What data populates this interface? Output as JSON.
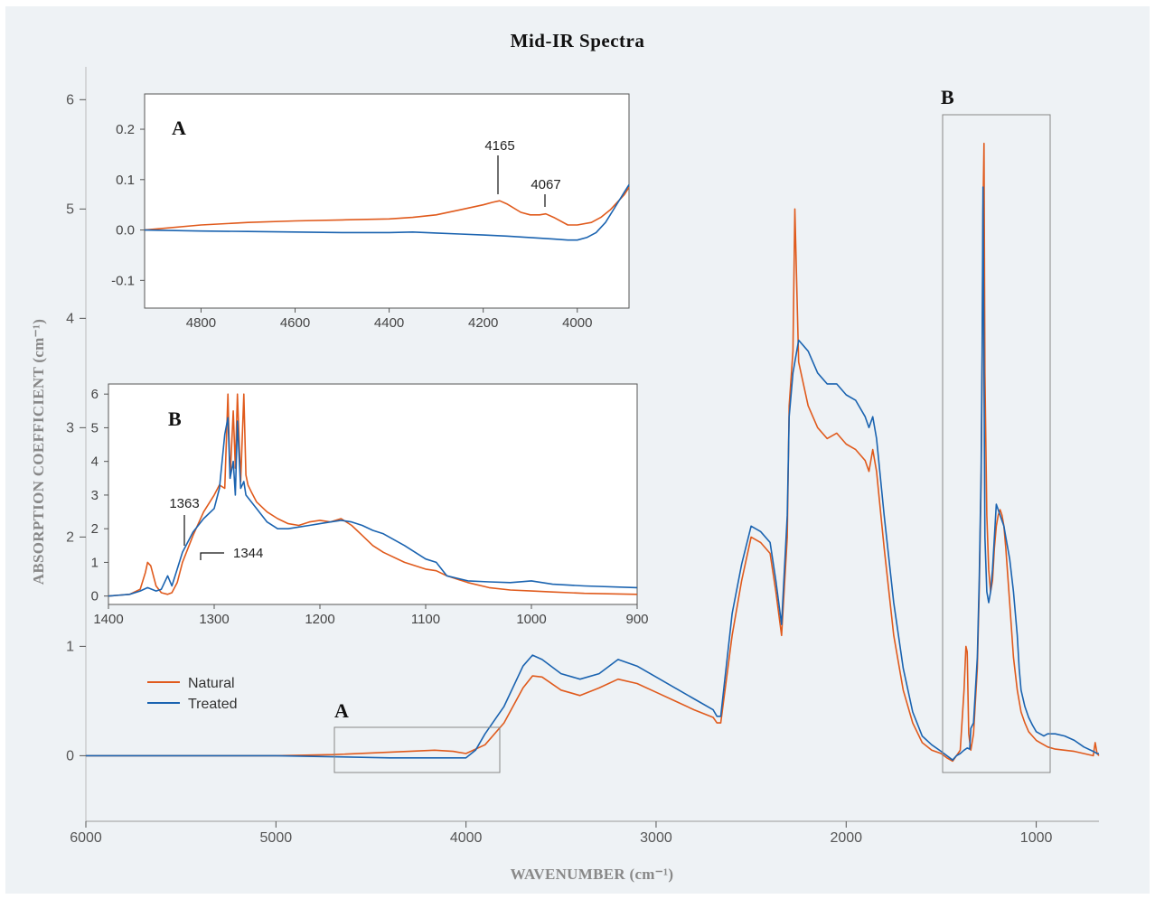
{
  "chart_data": [
    {
      "id": "main",
      "type": "line",
      "title": "Mid-IR Spectra",
      "xlabel": "WAVENUMBER (cm⁻¹)",
      "ylabel": "ABSORPTION COEFFICIENT (cm⁻¹)",
      "xlim": [
        6000,
        670
      ],
      "ylim": [
        -0.6,
        6.3
      ],
      "xticks": [
        "6000",
        "5000",
        "4000",
        "3000",
        "2000",
        "1000"
      ],
      "yticks": [
        "0",
        "1",
        "2",
        "3",
        "4",
        "5",
        "6"
      ],
      "region_labels": {
        "A": "A",
        "B": "B"
      },
      "series": [
        {
          "name": "Natural",
          "color": "#e05a1c",
          "x": [
            6000,
            5000,
            4700,
            4300,
            4165,
            4067,
            4000,
            3900,
            3800,
            3700,
            3650,
            3600,
            3500,
            3400,
            3300,
            3200,
            3100,
            3000,
            2900,
            2800,
            2700,
            2680,
            2660,
            2600,
            2550,
            2500,
            2450,
            2400,
            2370,
            2340,
            2310,
            2300,
            2280,
            2270,
            2250,
            2200,
            2150,
            2100,
            2050,
            2000,
            1950,
            1900,
            1880,
            1860,
            1840,
            1800,
            1750,
            1700,
            1650,
            1600,
            1550,
            1500,
            1470,
            1440,
            1420,
            1400,
            1380,
            1370,
            1363,
            1355,
            1344,
            1330,
            1310,
            1300,
            1290,
            1285,
            1280,
            1275,
            1270,
            1260,
            1250,
            1240,
            1230,
            1220,
            1210,
            1200,
            1190,
            1180,
            1170,
            1160,
            1140,
            1120,
            1100,
            1080,
            1060,
            1040,
            1020,
            1000,
            980,
            960,
            940,
            900,
            850,
            800,
            750,
            700,
            690,
            680,
            670
          ],
          "values": [
            0.0,
            0.0,
            0.01,
            0.04,
            0.05,
            0.04,
            0.02,
            0.1,
            0.3,
            0.62,
            0.73,
            0.72,
            0.6,
            0.55,
            0.62,
            0.7,
            0.66,
            0.58,
            0.5,
            0.42,
            0.35,
            0.3,
            0.3,
            1.1,
            1.6,
            2.0,
            1.95,
            1.85,
            1.5,
            1.1,
            2.0,
            3.2,
            3.7,
            5.0,
            3.6,
            3.2,
            3.0,
            2.9,
            2.95,
            2.85,
            2.8,
            2.7,
            2.6,
            2.8,
            2.6,
            1.9,
            1.1,
            0.6,
            0.3,
            0.12,
            0.05,
            0.02,
            -0.02,
            -0.05,
            0.0,
            0.05,
            0.6,
            1.0,
            0.95,
            0.2,
            0.05,
            0.2,
            0.8,
            1.5,
            2.5,
            3.5,
            5.0,
            5.6,
            3.5,
            2.2,
            1.7,
            1.5,
            1.6,
            1.9,
            2.1,
            2.2,
            2.25,
            2.2,
            2.1,
            1.9,
            1.4,
            0.9,
            0.6,
            0.4,
            0.3,
            0.22,
            0.18,
            0.14,
            0.12,
            0.1,
            0.08,
            0.06,
            0.05,
            0.04,
            0.02,
            0.0,
            0.12,
            0.02,
            0.0
          ]
        },
        {
          "name": "Treated",
          "color": "#1a63b0",
          "x": [
            6000,
            5000,
            4700,
            4400,
            4300,
            4000,
            3950,
            3900,
            3800,
            3700,
            3650,
            3600,
            3500,
            3400,
            3300,
            3200,
            3100,
            3000,
            2900,
            2800,
            2700,
            2680,
            2660,
            2600,
            2550,
            2500,
            2450,
            2400,
            2370,
            2340,
            2310,
            2300,
            2280,
            2250,
            2200,
            2150,
            2100,
            2050,
            2000,
            1950,
            1900,
            1880,
            1860,
            1840,
            1800,
            1750,
            1700,
            1650,
            1600,
            1550,
            1500,
            1470,
            1440,
            1420,
            1400,
            1380,
            1363,
            1350,
            1344,
            1330,
            1310,
            1300,
            1290,
            1285,
            1280,
            1275,
            1270,
            1260,
            1250,
            1240,
            1230,
            1220,
            1210,
            1200,
            1190,
            1180,
            1170,
            1160,
            1140,
            1120,
            1100,
            1090,
            1080,
            1060,
            1040,
            1020,
            1000,
            980,
            960,
            940,
            900,
            850,
            800,
            750,
            700,
            680,
            670
          ],
          "values": [
            0.0,
            0.0,
            -0.01,
            -0.02,
            -0.02,
            -0.02,
            0.05,
            0.2,
            0.45,
            0.82,
            0.92,
            0.88,
            0.75,
            0.7,
            0.75,
            0.88,
            0.82,
            0.72,
            0.62,
            0.52,
            0.42,
            0.36,
            0.36,
            1.3,
            1.75,
            2.1,
            2.05,
            1.95,
            1.6,
            1.2,
            2.2,
            3.1,
            3.5,
            3.8,
            3.7,
            3.5,
            3.4,
            3.4,
            3.3,
            3.25,
            3.1,
            3.0,
            3.1,
            2.9,
            2.2,
            1.4,
            0.8,
            0.4,
            0.18,
            0.1,
            0.04,
            0.0,
            -0.04,
            0.0,
            0.02,
            0.05,
            0.07,
            0.06,
            0.25,
            0.3,
            0.9,
            1.6,
            2.6,
            3.7,
            5.2,
            3.5,
            2.0,
            1.5,
            1.4,
            1.5,
            1.7,
            2.0,
            2.3,
            2.25,
            2.2,
            2.15,
            2.1,
            2.0,
            1.8,
            1.5,
            1.1,
            0.8,
            0.6,
            0.45,
            0.35,
            0.28,
            0.22,
            0.2,
            0.18,
            0.2,
            0.2,
            0.18,
            0.14,
            0.08,
            0.04,
            0.02,
            0.02
          ]
        }
      ]
    },
    {
      "id": "inset_A",
      "type": "line",
      "label": "A",
      "xlim": [
        4920,
        3890
      ],
      "ylim": [
        -0.155,
        0.27
      ],
      "xticks": [
        "4800",
        "4600",
        "4400",
        "4200",
        "4000"
      ],
      "yticks": [
        "0.2",
        "0.1",
        "0.0",
        "-0.1"
      ],
      "annotations": [
        "4165",
        "4067"
      ],
      "series": [
        {
          "name": "Natural",
          "x": [
            4920,
            4800,
            4700,
            4600,
            4500,
            4400,
            4350,
            4300,
            4250,
            4200,
            4180,
            4165,
            4150,
            4120,
            4100,
            4080,
            4067,
            4050,
            4020,
            4000,
            3970,
            3950,
            3930,
            3910,
            3900,
            3890
          ],
          "values": [
            0.0,
            0.01,
            0.015,
            0.018,
            0.02,
            0.022,
            0.025,
            0.03,
            0.04,
            0.05,
            0.055,
            0.058,
            0.052,
            0.035,
            0.03,
            0.03,
            0.032,
            0.025,
            0.01,
            0.01,
            0.015,
            0.025,
            0.04,
            0.06,
            0.07,
            0.085
          ]
        },
        {
          "name": "Treated",
          "x": [
            4920,
            4800,
            4700,
            4600,
            4500,
            4400,
            4350,
            4300,
            4250,
            4200,
            4150,
            4100,
            4050,
            4020,
            4000,
            3980,
            3960,
            3940,
            3920,
            3900,
            3890
          ],
          "values": [
            0.0,
            -0.002,
            -0.003,
            -0.004,
            -0.005,
            -0.005,
            -0.004,
            -0.006,
            -0.008,
            -0.01,
            -0.012,
            -0.015,
            -0.018,
            -0.02,
            -0.02,
            -0.015,
            -0.005,
            0.015,
            0.045,
            0.075,
            0.09
          ]
        }
      ]
    },
    {
      "id": "inset_B",
      "type": "line",
      "label": "B",
      "xlim": [
        1400,
        900
      ],
      "ylim": [
        -0.25,
        6.3
      ],
      "xticks": [
        "1400",
        "1300",
        "1200",
        "1100",
        "1000",
        "900"
      ],
      "yticks": [
        "6",
        "5",
        "4",
        "3",
        "2",
        "1",
        "0"
      ],
      "annotations": [
        "1363",
        "1344"
      ],
      "series": [
        {
          "name": "Natural",
          "x": [
            1400,
            1380,
            1370,
            1365,
            1363,
            1360,
            1355,
            1350,
            1344,
            1340,
            1335,
            1330,
            1320,
            1310,
            1300,
            1295,
            1290,
            1287,
            1285,
            1282,
            1280,
            1278,
            1275,
            1272,
            1270,
            1268,
            1265,
            1260,
            1250,
            1240,
            1230,
            1220,
            1210,
            1200,
            1190,
            1180,
            1170,
            1160,
            1150,
            1140,
            1120,
            1100,
            1090,
            1080,
            1060,
            1040,
            1020,
            1000,
            980,
            950,
            900
          ],
          "values": [
            0.0,
            0.05,
            0.2,
            0.7,
            1.0,
            0.9,
            0.3,
            0.1,
            0.05,
            0.1,
            0.4,
            1.0,
            1.8,
            2.5,
            3.0,
            3.3,
            3.2,
            6.0,
            3.5,
            5.5,
            3.8,
            6.0,
            3.4,
            6.0,
            3.6,
            3.3,
            3.1,
            2.8,
            2.5,
            2.3,
            2.15,
            2.1,
            2.2,
            2.25,
            2.2,
            2.3,
            2.1,
            1.8,
            1.5,
            1.3,
            1.0,
            0.8,
            0.75,
            0.6,
            0.4,
            0.25,
            0.18,
            0.15,
            0.12,
            0.08,
            0.05
          ]
        },
        {
          "name": "Treated",
          "x": [
            1400,
            1380,
            1370,
            1363,
            1355,
            1350,
            1344,
            1340,
            1335,
            1330,
            1320,
            1310,
            1300,
            1295,
            1290,
            1287,
            1285,
            1282,
            1280,
            1278,
            1275,
            1272,
            1270,
            1265,
            1260,
            1250,
            1240,
            1230,
            1220,
            1210,
            1200,
            1190,
            1180,
            1170,
            1160,
            1150,
            1140,
            1120,
            1100,
            1090,
            1080,
            1060,
            1040,
            1020,
            1000,
            980,
            950,
            900
          ],
          "values": [
            0.0,
            0.05,
            0.15,
            0.25,
            0.15,
            0.2,
            0.6,
            0.3,
            0.8,
            1.3,
            1.9,
            2.3,
            2.6,
            3.2,
            4.8,
            5.3,
            3.5,
            4.0,
            3.0,
            5.2,
            3.2,
            3.4,
            3.0,
            2.8,
            2.6,
            2.2,
            2.0,
            2.0,
            2.05,
            2.1,
            2.15,
            2.2,
            2.25,
            2.2,
            2.1,
            1.95,
            1.85,
            1.5,
            1.1,
            1.0,
            0.6,
            0.45,
            0.42,
            0.4,
            0.45,
            0.35,
            0.3,
            0.25
          ]
        }
      ]
    }
  ]
}
